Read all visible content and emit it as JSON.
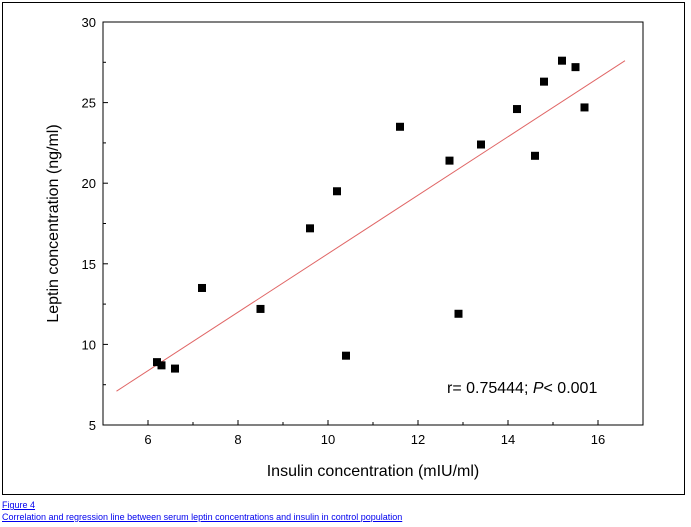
{
  "figure": {
    "label": "Figure 4",
    "caption": "Correlation and regression line between serum leptin concentrations and insulin in control population"
  },
  "chart_data": {
    "type": "scatter",
    "xlabel": "Insulin concentration (mIU/ml)",
    "ylabel": "Leptin concentration (ng/ml)",
    "xlim": [
      5,
      17
    ],
    "ylim": [
      5,
      30
    ],
    "xticks": [
      6,
      8,
      10,
      12,
      14,
      16
    ],
    "yticks": [
      5,
      10,
      15,
      20,
      25,
      30
    ],
    "grid": false,
    "annotation": {
      "prefix": "r= 0.75444; ",
      "italic": "P",
      "suffix": "< 0.001"
    },
    "points": [
      {
        "x": 6.2,
        "y": 8.9
      },
      {
        "x": 6.3,
        "y": 8.7
      },
      {
        "x": 6.6,
        "y": 8.5
      },
      {
        "x": 7.2,
        "y": 13.5
      },
      {
        "x": 8.5,
        "y": 12.2
      },
      {
        "x": 9.6,
        "y": 17.2
      },
      {
        "x": 10.2,
        "y": 19.5
      },
      {
        "x": 10.4,
        "y": 9.3
      },
      {
        "x": 11.6,
        "y": 23.5
      },
      {
        "x": 12.7,
        "y": 21.4
      },
      {
        "x": 12.9,
        "y": 11.9
      },
      {
        "x": 13.4,
        "y": 22.4
      },
      {
        "x": 14.2,
        "y": 24.6
      },
      {
        "x": 14.6,
        "y": 21.7
      },
      {
        "x": 14.8,
        "y": 26.3
      },
      {
        "x": 15.2,
        "y": 27.6
      },
      {
        "x": 15.5,
        "y": 27.2
      },
      {
        "x": 15.7,
        "y": 24.7
      }
    ],
    "regression": {
      "x": [
        5.3,
        16.6
      ],
      "y": [
        7.1,
        27.6
      ]
    },
    "colors": {
      "points": "#000000",
      "regression": "#e06666",
      "axis": "#000000"
    }
  }
}
